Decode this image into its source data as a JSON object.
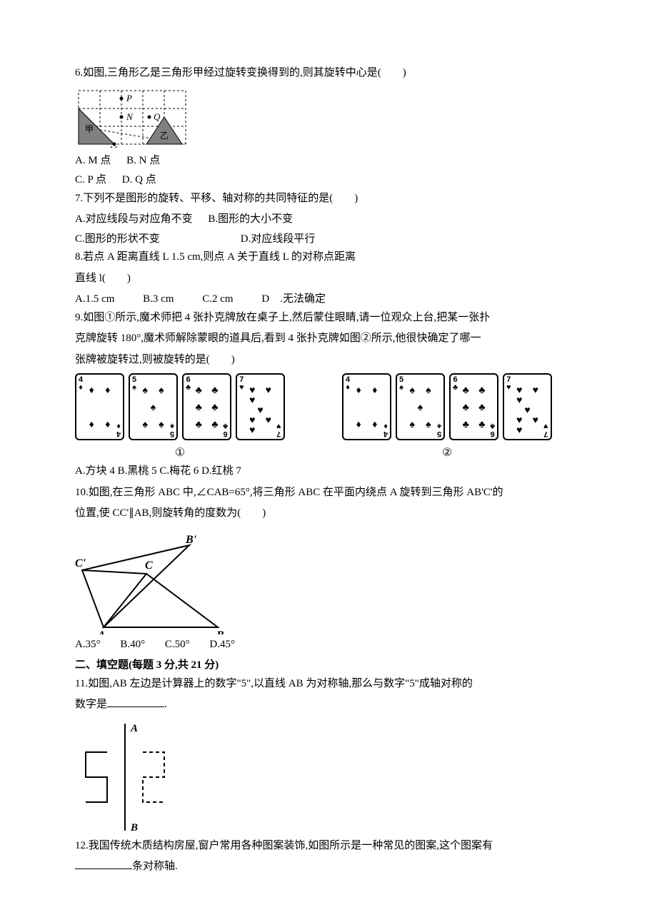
{
  "q6": {
    "text": "6.如图,三角形乙是三角形甲经过旋转变换得到的,则其旋转中心是(　　)",
    "grid": {
      "labels": {
        "P": "P",
        "N": "N",
        "Q": "Q",
        "M": "M",
        "jia": "甲",
        "yi": "乙"
      },
      "colors": {
        "tri_fill": "#808080",
        "grid": "#000"
      }
    },
    "opts": {
      "a": "A. M 点",
      "b": "B. N 点",
      "c": "C. P 点",
      "d": "D. Q 点"
    }
  },
  "q7": {
    "text": "7.下列不是图形的旋转、平移、轴对称的共同特征的是(　　)",
    "opts": {
      "a": "A.对应线段与对应角不变",
      "b": "B.图形的大小不变",
      "c": "C.图形的形状不变",
      "d": "D.对应线段平行"
    }
  },
  "q8": {
    "text": "8.若点 A 距离直线 L 1.5 cm,则点 A 关于直线 L 的对称点距离",
    "text2": "直线 l(　　)",
    "opts": {
      "a": "A.1.5 cm",
      "b": "B.3 cm",
      "c": "C.2 cm",
      "d": "D　.无法确定"
    }
  },
  "q9": {
    "text1": "9.如图①所示,魔术师把 4 张扑克牌放在桌子上,然后蒙住眼睛,请一位观众上台,把某一张扑",
    "text2": "克牌旋转 180°,魔术师解除蒙眼的道具后,看到 4 张扑克牌如图②所示,他很快确定了哪一",
    "text3": "张牌被旋转过,则被旋转的是(　　)",
    "cards": [
      {
        "rank": "4",
        "suit": "♦",
        "pips": 4
      },
      {
        "rank": "5",
        "suit": "♠",
        "pips": 5
      },
      {
        "rank": "6",
        "suit": "♣",
        "pips": 6
      },
      {
        "rank": "7",
        "suit": "♥",
        "pips": 7
      }
    ],
    "labels": {
      "g1": "①",
      "g2": "②"
    },
    "opts_line": "A.方块 4 B.黑桃 5 C.梅花 6 D.红桃 7"
  },
  "q10": {
    "text1": "10.如图,在三角形 ABC 中,∠CAB=65°,将三角形 ABC 在平面内绕点 A 旋转到三角形 AB'C'的",
    "text2": "位置,使 CC'∥AB,则旋转角的度数为(　　)",
    "labels": {
      "Bp": "B'",
      "Cp": "C'",
      "C": "C",
      "A": "A",
      "B": "B"
    },
    "opts": {
      "a": "A.35°",
      "b": "B.40°",
      "c": "C.50°",
      "d": "D.45°"
    }
  },
  "section2": "二、填空题(每题 3 分,共 21 分)",
  "q11": {
    "text1": "11.如图,AB 左边是计算器上的数字\"5\",以直线 AB 为对称轴,那么与数字\"5\"成轴对称的",
    "text2": "数字是",
    "period": ".",
    "labels": {
      "A": "A",
      "B": "B"
    }
  },
  "q12": {
    "text1": "12.我国传统木质结构房屋,窗户常用各种图案装饰,如图所示是一种常见的图案,这个图案有",
    "tail": "条对称轴."
  }
}
